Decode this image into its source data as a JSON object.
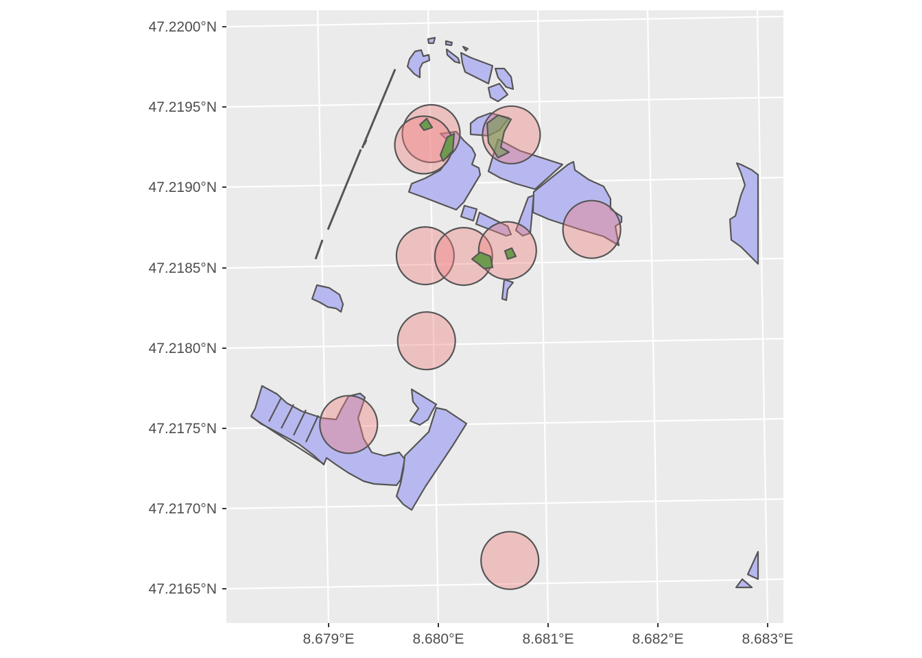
{
  "chart_data": {
    "type": "map",
    "title": "",
    "xlabel": "",
    "ylabel": "",
    "x_ticks": [
      "8.679°E",
      "8.680°E",
      "8.681°E",
      "8.682°E",
      "8.683°E"
    ],
    "y_ticks": [
      "47.2200°N",
      "47.2195°N",
      "47.2190°N",
      "47.2185°N",
      "47.2180°N",
      "47.2175°N",
      "47.2170°N",
      "47.2165°N"
    ],
    "panel_background": "#ebebeb",
    "grid": true,
    "colors": {
      "polygon_fill": "#b8b8f0",
      "overlap_fill": "#6f9a4e",
      "circle_fill": "#f08080",
      "outline": "#555555"
    },
    "circles": [
      {
        "lon": 8.67992,
        "lat": 47.21932
      },
      {
        "lon": 8.67985,
        "lat": 47.21925
      },
      {
        "lon": 8.68065,
        "lat": 47.2193
      },
      {
        "lon": 8.67985,
        "lat": 47.21856
      },
      {
        "lon": 8.6802,
        "lat": 47.21855
      },
      {
        "lon": 8.6806,
        "lat": 47.21858
      },
      {
        "lon": 8.68137,
        "lat": 47.2187
      },
      {
        "lon": 8.67985,
        "lat": 47.21803
      },
      {
        "lon": 8.67913,
        "lat": 47.21752
      },
      {
        "lon": 8.68058,
        "lat": 47.21665
      }
    ]
  }
}
